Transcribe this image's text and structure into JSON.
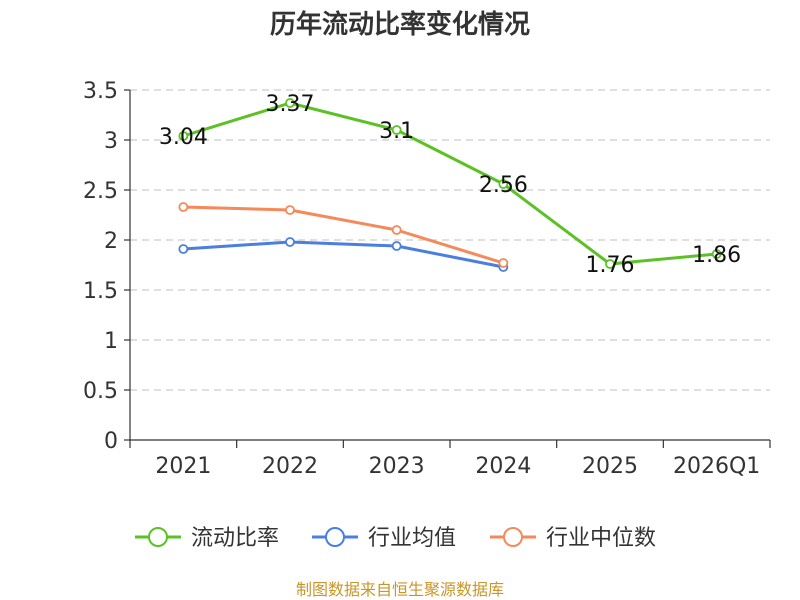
{
  "chart_data": {
    "type": "line",
    "title": "历年流动比率变化情况",
    "categories": [
      "2021",
      "2022",
      "2023",
      "2024",
      "2025",
      "2026Q1"
    ],
    "yticks": [
      "0",
      "0.5",
      "1",
      "1.5",
      "2",
      "2.5",
      "3",
      "3.5"
    ],
    "ylim": [
      0,
      3.5
    ],
    "grid": true,
    "legend_position": "bottom",
    "series": [
      {
        "name": "流动比率",
        "color": "#5cc125",
        "values": [
          3.04,
          3.37,
          3.1,
          2.56,
          1.76,
          1.86
        ],
        "labels": [
          "3.04",
          "3.37",
          "3.1",
          "2.56",
          "1.76",
          "1.86"
        ],
        "show_labels": true
      },
      {
        "name": "行业均值",
        "color": "#4a7fe0",
        "values": [
          1.91,
          1.98,
          1.94,
          1.73,
          null,
          null
        ],
        "show_labels": false
      },
      {
        "name": "行业中位数",
        "color": "#f5895a",
        "values": [
          2.33,
          2.3,
          2.1,
          1.77,
          null,
          null
        ],
        "show_labels": false
      }
    ],
    "source": "制图数据来自恒生聚源数据库"
  }
}
